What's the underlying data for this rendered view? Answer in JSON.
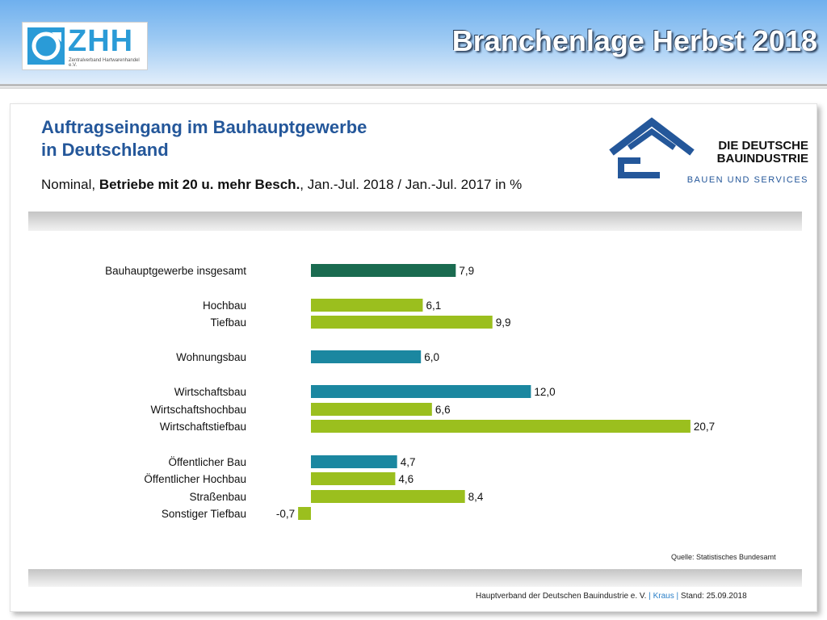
{
  "header": {
    "logo": {
      "letters": "ZHH",
      "subtitle": "Zentralverband Hartwarenhandel e.V."
    },
    "title": "Branchenlage Herbst 2018"
  },
  "panel": {
    "title_line1": "Auftragseingang im Bauhauptgewerbe",
    "title_line2": "in Deutschland",
    "subtitle_prefix": "Nominal, ",
    "subtitle_bold": "Betriebe mit 20 u. mehr Besch.",
    "subtitle_suffix": ", Jan.-Jul. 2018 / Jan.-Jul. 2017 in %",
    "partner_logo": {
      "line1": "DIE DEUTSCHE",
      "line2": "BAUINDUSTRIE",
      "line3": "BAUEN UND SERVICES"
    },
    "source": "Quelle: Statistisches Bundesamt",
    "footer": {
      "org": "Hauptverband der Deutschen Bauindustrie e. V.",
      "author": "Kraus",
      "stand": "Stand: 25.09.2018"
    }
  },
  "colors": {
    "dark_green": "#1a6b50",
    "lime": "#9bbf1e",
    "teal": "#1b87a0",
    "title_blue": "#24579a"
  },
  "chart_data": {
    "type": "bar",
    "orientation": "horizontal",
    "categories": [
      "Bauhauptgewerbe insgesamt",
      "Hochbau",
      "Tiefbau",
      "Wohnungsbau",
      "Wirtschaftsbau",
      "Wirtschaftshochbau",
      "Wirtschaftstiefbau",
      "Öffentlicher Bau",
      "Öffentlicher Hochbau",
      "Straßenbau",
      "Sonstiger Tiefbau"
    ],
    "values": [
      7.9,
      6.1,
      9.9,
      6.0,
      12.0,
      6.6,
      20.7,
      4.7,
      4.6,
      8.4,
      -0.7
    ],
    "value_labels": [
      "7,9",
      "6,1",
      "9,9",
      "6,0",
      "12,0",
      "6,6",
      "20,7",
      "4,7",
      "4,6",
      "8,4",
      "-0,7"
    ],
    "bar_colors": [
      "dark_green",
      "lime",
      "lime",
      "teal",
      "teal",
      "lime",
      "lime",
      "teal",
      "lime",
      "lime",
      "lime"
    ],
    "groups": [
      [
        0
      ],
      [
        1,
        2
      ],
      [
        3
      ],
      [
        4,
        5,
        6
      ],
      [
        7,
        8,
        9,
        10
      ]
    ],
    "grid": false,
    "legend": "none"
  }
}
